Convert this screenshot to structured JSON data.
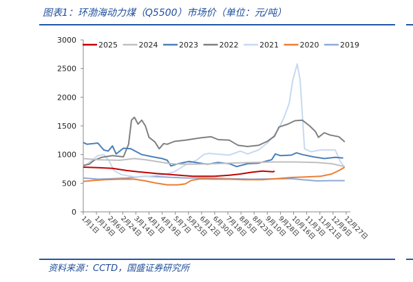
{
  "title": "图表1：环渤海动力煤（Q5500）市场价（单位：元/吨）",
  "source": "资料来源：CCTD，国盛证券研究所",
  "chart_data": {
    "type": "line",
    "title": "图表1：环渤海动力煤（Q5500）市场价（单位：元/吨）",
    "xlabel": "",
    "ylabel": "元/吨",
    "ylim": [
      0,
      3000
    ],
    "yticks": [
      0,
      500,
      1000,
      1500,
      2000,
      2500,
      3000
    ],
    "ytick_labels": [
      "0",
      "500",
      "1000",
      "1500",
      "2000",
      "2500",
      "3000"
    ],
    "xlim_days": [
      0,
      362
    ],
    "xtick_days": [
      0,
      18,
      36,
      54,
      72,
      90,
      108,
      126,
      144,
      162,
      180,
      198,
      216,
      234,
      252,
      270,
      288,
      306,
      324,
      342,
      360
    ],
    "xtick_labels": [
      "1月1日",
      "1月19日",
      "2月6日",
      "2月24日",
      "3月14日",
      "4月1日",
      "4月19日",
      "5月7日",
      "5月25日",
      "6月12日",
      "6月30日",
      "7月18日",
      "8月5日",
      "8月23日",
      "9月10日",
      "9月28日",
      "10月16日",
      "11月3日",
      "11月21日",
      "12月9日",
      "12月27日"
    ],
    "legend_position": "top",
    "grid": false,
    "series": [
      {
        "name": "2025",
        "color": "#c00000",
        "points": [
          [
            0,
            780
          ],
          [
            20,
            770
          ],
          [
            40,
            760
          ],
          [
            60,
            720
          ],
          [
            75,
            700
          ],
          [
            100,
            670
          ],
          [
            120,
            650
          ],
          [
            150,
            620
          ],
          [
            180,
            620
          ],
          [
            200,
            640
          ],
          [
            215,
            660
          ],
          [
            230,
            690
          ],
          [
            245,
            710
          ],
          [
            260,
            700
          ],
          [
            262,
            710
          ]
        ]
      },
      {
        "name": "2024",
        "color": "#bfbfbf",
        "points": [
          [
            0,
            930
          ],
          [
            20,
            910
          ],
          [
            50,
            900
          ],
          [
            70,
            930
          ],
          [
            85,
            910
          ],
          [
            100,
            880
          ],
          [
            115,
            850
          ],
          [
            125,
            835
          ],
          [
            150,
            830
          ],
          [
            180,
            840
          ],
          [
            200,
            850
          ],
          [
            230,
            860
          ],
          [
            260,
            870
          ],
          [
            290,
            870
          ],
          [
            320,
            860
          ],
          [
            340,
            840
          ],
          [
            358,
            790
          ]
        ]
      },
      {
        "name": "2023",
        "color": "#4a7ebb",
        "points": [
          [
            0,
            1210
          ],
          [
            5,
            1180
          ],
          [
            20,
            1200
          ],
          [
            28,
            1080
          ],
          [
            34,
            1060
          ],
          [
            40,
            1150
          ],
          [
            45,
            1010
          ],
          [
            55,
            1110
          ],
          [
            65,
            1100
          ],
          [
            80,
            1000
          ],
          [
            95,
            960
          ],
          [
            108,
            930
          ],
          [
            115,
            900
          ],
          [
            120,
            800
          ],
          [
            130,
            840
          ],
          [
            145,
            880
          ],
          [
            160,
            850
          ],
          [
            170,
            830
          ],
          [
            185,
            860
          ],
          [
            200,
            840
          ],
          [
            210,
            790
          ],
          [
            225,
            840
          ],
          [
            240,
            850
          ],
          [
            258,
            910
          ],
          [
            263,
            1010
          ],
          [
            270,
            980
          ],
          [
            285,
            990
          ],
          [
            292,
            1030
          ],
          [
            300,
            1000
          ],
          [
            315,
            960
          ],
          [
            330,
            930
          ],
          [
            345,
            950
          ],
          [
            356,
            940
          ]
        ]
      },
      {
        "name": "2022",
        "color": "#7f7f7f",
        "points": [
          [
            0,
            810
          ],
          [
            8,
            830
          ],
          [
            15,
            900
          ],
          [
            25,
            950
          ],
          [
            40,
            980
          ],
          [
            55,
            960
          ],
          [
            62,
            1180
          ],
          [
            66,
            1600
          ],
          [
            70,
            1650
          ],
          [
            75,
            1530
          ],
          [
            80,
            1600
          ],
          [
            85,
            1500
          ],
          [
            90,
            1300
          ],
          [
            98,
            1220
          ],
          [
            104,
            1100
          ],
          [
            110,
            1190
          ],
          [
            115,
            1180
          ],
          [
            125,
            1230
          ],
          [
            140,
            1250
          ],
          [
            160,
            1290
          ],
          [
            175,
            1310
          ],
          [
            185,
            1260
          ],
          [
            200,
            1250
          ],
          [
            212,
            1160
          ],
          [
            225,
            1140
          ],
          [
            240,
            1160
          ],
          [
            252,
            1230
          ],
          [
            262,
            1320
          ],
          [
            268,
            1480
          ],
          [
            280,
            1530
          ],
          [
            290,
            1590
          ],
          [
            300,
            1600
          ],
          [
            310,
            1500
          ],
          [
            318,
            1400
          ],
          [
            322,
            1300
          ],
          [
            330,
            1380
          ],
          [
            338,
            1340
          ],
          [
            350,
            1310
          ],
          [
            358,
            1220
          ]
        ]
      },
      {
        "name": "2021",
        "color": "#c6d9f1",
        "points": [
          [
            0,
            790
          ],
          [
            10,
            880
          ],
          [
            20,
            980
          ],
          [
            28,
            1000
          ],
          [
            35,
            900
          ],
          [
            42,
            720
          ],
          [
            52,
            650
          ],
          [
            70,
            610
          ],
          [
            90,
            620
          ],
          [
            110,
            650
          ],
          [
            125,
            700
          ],
          [
            140,
            820
          ],
          [
            155,
            900
          ],
          [
            165,
            1000
          ],
          [
            172,
            1020
          ],
          [
            180,
            1010
          ],
          [
            200,
            990
          ],
          [
            215,
            1060
          ],
          [
            225,
            1010
          ],
          [
            240,
            1080
          ],
          [
            252,
            1200
          ],
          [
            260,
            1310
          ],
          [
            268,
            1460
          ],
          [
            275,
            1650
          ],
          [
            282,
            1890
          ],
          [
            287,
            2300
          ],
          [
            293,
            2580
          ],
          [
            297,
            2300
          ],
          [
            303,
            1100
          ],
          [
            312,
            1050
          ],
          [
            325,
            1080
          ],
          [
            345,
            1080
          ],
          [
            352,
            880
          ],
          [
            357,
            790
          ]
        ]
      },
      {
        "name": "2020",
        "color": "#ed7d31",
        "points": [
          [
            0,
            530
          ],
          [
            15,
            550
          ],
          [
            30,
            560
          ],
          [
            50,
            570
          ],
          [
            70,
            570
          ],
          [
            85,
            540
          ],
          [
            100,
            500
          ],
          [
            115,
            470
          ],
          [
            130,
            470
          ],
          [
            140,
            490
          ],
          [
            148,
            550
          ],
          [
            160,
            575
          ],
          [
            180,
            570
          ],
          [
            200,
            570
          ],
          [
            220,
            560
          ],
          [
            245,
            560
          ],
          [
            265,
            580
          ],
          [
            285,
            600
          ],
          [
            305,
            610
          ],
          [
            325,
            620
          ],
          [
            340,
            660
          ],
          [
            350,
            720
          ],
          [
            358,
            780
          ]
        ]
      },
      {
        "name": "2019",
        "color": "#8eaad8",
        "points": [
          [
            0,
            590
          ],
          [
            20,
            570
          ],
          [
            40,
            580
          ],
          [
            60,
            590
          ],
          [
            85,
            620
          ],
          [
            110,
            610
          ],
          [
            140,
            590
          ],
          [
            170,
            590
          ],
          [
            200,
            580
          ],
          [
            230,
            570
          ],
          [
            260,
            575
          ],
          [
            285,
            580
          ],
          [
            300,
            560
          ],
          [
            320,
            540
          ],
          [
            340,
            545
          ],
          [
            358,
            545
          ]
        ]
      }
    ]
  }
}
